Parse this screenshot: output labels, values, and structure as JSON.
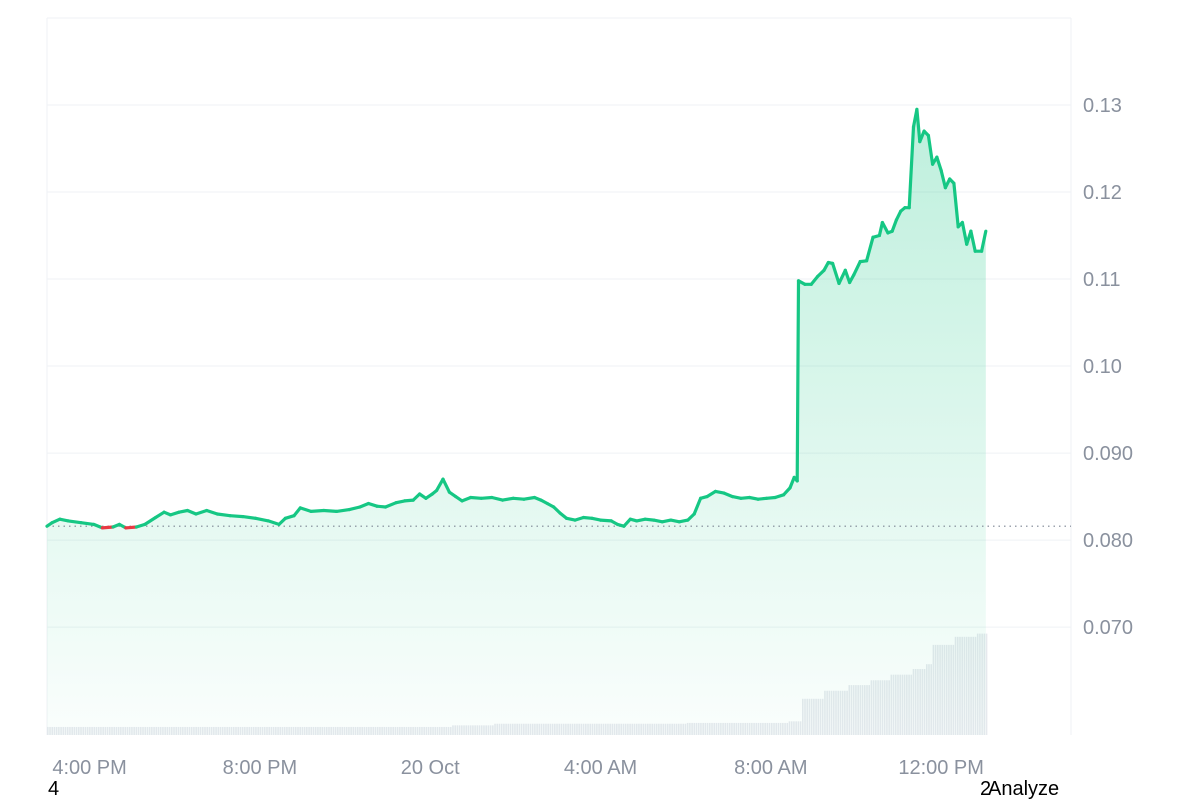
{
  "chart_data": {
    "type": "area",
    "y_ticks": [
      {
        "label": "0.13",
        "value": 0.13
      },
      {
        "label": "0.12",
        "value": 0.12
      },
      {
        "label": "0.11",
        "value": 0.11
      },
      {
        "label": "0.10",
        "value": 0.1
      },
      {
        "label": "0.090",
        "value": 0.09
      },
      {
        "label": "0.080",
        "value": 0.08
      },
      {
        "label": "0.070",
        "value": 0.07
      }
    ],
    "x_ticks": [
      {
        "label": "4:00 PM",
        "t": 3
      },
      {
        "label": "8:00 PM",
        "t": 7
      },
      {
        "label": "20 Oct",
        "t": 11
      },
      {
        "label": "4:00 AM",
        "t": 15
      },
      {
        "label": "8:00 AM",
        "t": 19
      },
      {
        "label": "12:00 PM",
        "t": 23
      }
    ],
    "x_range": [
      2.0,
      26.05
    ],
    "ylim": [
      0.0576,
      0.14
    ],
    "baseline": 0.0816,
    "colors": {
      "up": "#16c784",
      "down": "#ea3943",
      "grid": "#eff2f5",
      "volume": "#e6e9ee"
    },
    "price": [
      [
        2.0,
        0.0816
      ],
      [
        2.12,
        0.082
      ],
      [
        2.3,
        0.0824
      ],
      [
        2.5,
        0.0822
      ],
      [
        2.8,
        0.082
      ],
      [
        3.1,
        0.0818
      ],
      [
        3.3,
        0.0814
      ],
      [
        3.55,
        0.0815
      ],
      [
        3.7,
        0.0818
      ],
      [
        3.85,
        0.0814
      ],
      [
        4.1,
        0.0815
      ],
      [
        4.3,
        0.0818
      ],
      [
        4.55,
        0.0826
      ],
      [
        4.75,
        0.0832
      ],
      [
        4.9,
        0.0829
      ],
      [
        5.1,
        0.0832
      ],
      [
        5.3,
        0.0834
      ],
      [
        5.5,
        0.083
      ],
      [
        5.75,
        0.0834
      ],
      [
        6.0,
        0.083
      ],
      [
        6.3,
        0.0828
      ],
      [
        6.6,
        0.0827
      ],
      [
        6.9,
        0.0825
      ],
      [
        7.2,
        0.0822
      ],
      [
        7.45,
        0.0818
      ],
      [
        7.6,
        0.0825
      ],
      [
        7.8,
        0.0828
      ],
      [
        7.95,
        0.0837
      ],
      [
        8.2,
        0.0833
      ],
      [
        8.5,
        0.0834
      ],
      [
        8.8,
        0.0833
      ],
      [
        9.1,
        0.0835
      ],
      [
        9.35,
        0.0838
      ],
      [
        9.55,
        0.0842
      ],
      [
        9.75,
        0.0839
      ],
      [
        9.95,
        0.0838
      ],
      [
        10.2,
        0.0843
      ],
      [
        10.4,
        0.0845
      ],
      [
        10.6,
        0.0846
      ],
      [
        10.75,
        0.0853
      ],
      [
        10.9,
        0.0848
      ],
      [
        11.05,
        0.0853
      ],
      [
        11.15,
        0.0857
      ],
      [
        11.3,
        0.087
      ],
      [
        11.45,
        0.0855
      ],
      [
        11.6,
        0.085
      ],
      [
        11.75,
        0.0845
      ],
      [
        11.95,
        0.0849
      ],
      [
        12.2,
        0.0848
      ],
      [
        12.45,
        0.0849
      ],
      [
        12.7,
        0.0846
      ],
      [
        12.95,
        0.0848
      ],
      [
        13.2,
        0.0847
      ],
      [
        13.45,
        0.0849
      ],
      [
        13.6,
        0.0846
      ],
      [
        13.75,
        0.0842
      ],
      [
        13.9,
        0.0838
      ],
      [
        14.05,
        0.0831
      ],
      [
        14.2,
        0.0825
      ],
      [
        14.4,
        0.0823
      ],
      [
        14.6,
        0.0826
      ],
      [
        14.8,
        0.0825
      ],
      [
        15.0,
        0.0823
      ],
      [
        15.25,
        0.0822
      ],
      [
        15.4,
        0.0818
      ],
      [
        15.55,
        0.0816
      ],
      [
        15.7,
        0.0824
      ],
      [
        15.85,
        0.0822
      ],
      [
        16.05,
        0.0824
      ],
      [
        16.25,
        0.0823
      ],
      [
        16.45,
        0.0821
      ],
      [
        16.65,
        0.0823
      ],
      [
        16.85,
        0.0821
      ],
      [
        17.05,
        0.0823
      ],
      [
        17.2,
        0.083
      ],
      [
        17.35,
        0.0848
      ],
      [
        17.5,
        0.085
      ],
      [
        17.7,
        0.0856
      ],
      [
        17.9,
        0.0854
      ],
      [
        18.1,
        0.085
      ],
      [
        18.3,
        0.0848
      ],
      [
        18.5,
        0.0849
      ],
      [
        18.7,
        0.0847
      ],
      [
        18.9,
        0.0848
      ],
      [
        19.1,
        0.0849
      ],
      [
        19.3,
        0.0852
      ],
      [
        19.45,
        0.086
      ],
      [
        19.55,
        0.0872
      ],
      [
        19.62,
        0.0868
      ],
      [
        19.65,
        0.1098
      ],
      [
        19.8,
        0.1094
      ],
      [
        19.95,
        0.1094
      ],
      [
        20.1,
        0.1103
      ],
      [
        20.25,
        0.111
      ],
      [
        20.35,
        0.1119
      ],
      [
        20.45,
        0.1118
      ],
      [
        20.6,
        0.1095
      ],
      [
        20.75,
        0.111
      ],
      [
        20.85,
        0.1096
      ],
      [
        20.95,
        0.1105
      ],
      [
        21.1,
        0.112
      ],
      [
        21.25,
        0.1121
      ],
      [
        21.4,
        0.1148
      ],
      [
        21.55,
        0.115
      ],
      [
        21.62,
        0.1165
      ],
      [
        21.75,
        0.1153
      ],
      [
        21.85,
        0.1155
      ],
      [
        21.95,
        0.1168
      ],
      [
        22.05,
        0.1178
      ],
      [
        22.15,
        0.1182
      ],
      [
        22.25,
        0.1182
      ],
      [
        22.35,
        0.1275
      ],
      [
        22.43,
        0.1295
      ],
      [
        22.5,
        0.1258
      ],
      [
        22.6,
        0.127
      ],
      [
        22.7,
        0.1265
      ],
      [
        22.8,
        0.1232
      ],
      [
        22.9,
        0.124
      ],
      [
        23.0,
        0.1225
      ],
      [
        23.1,
        0.1205
      ],
      [
        23.2,
        0.1215
      ],
      [
        23.3,
        0.121
      ],
      [
        23.4,
        0.116
      ],
      [
        23.5,
        0.1165
      ],
      [
        23.6,
        0.114
      ],
      [
        23.7,
        0.1155
      ],
      [
        23.8,
        0.1132
      ],
      [
        23.95,
        0.1132
      ],
      [
        24.05,
        0.1155
      ]
    ],
    "volume": [
      [
        2.0,
        10
      ],
      [
        7.0,
        10
      ],
      [
        11.5,
        12
      ],
      [
        12.5,
        14
      ],
      [
        15.0,
        14
      ],
      [
        17.0,
        15
      ],
      [
        18.0,
        15
      ],
      [
        19.4,
        17
      ],
      [
        19.7,
        45
      ],
      [
        20.2,
        55
      ],
      [
        20.8,
        62
      ],
      [
        21.3,
        68
      ],
      [
        21.8,
        75
      ],
      [
        22.3,
        82
      ],
      [
        22.6,
        88
      ],
      [
        22.75,
        112
      ],
      [
        23.3,
        122
      ],
      [
        23.8,
        126
      ],
      [
        24.05,
        128
      ]
    ]
  },
  "footer": {
    "left": "4",
    "badge": "2",
    "action": "Analyze"
  }
}
